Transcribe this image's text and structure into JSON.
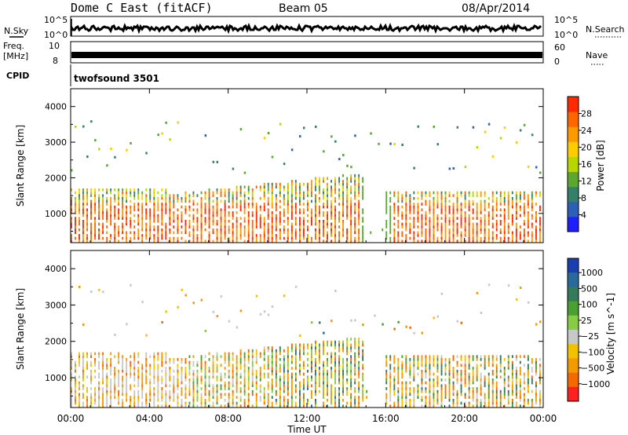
{
  "header": {
    "station": "Dome C East (fitACF)",
    "beam": "Beam 05",
    "date": "08/Apr/2014"
  },
  "meta_panels": {
    "nsky_label": "N.Sky",
    "nsearch_label": "N.Search",
    "freq_label_line1": "Freq.",
    "freq_label_line2": "[MHz]",
    "nave_label": "Nave",
    "cpid_label": "CPID",
    "cpid_value": "twofsound 3501",
    "noise_ticks": [
      "10^5",
      "10^0"
    ],
    "freq_ticks": [
      "10",
      "8"
    ],
    "nave_ticks": [
      "60",
      "0"
    ]
  },
  "chart_data": [
    {
      "type": "heatmap",
      "name": "power",
      "ylabel": "Slant Range [km]",
      "y_ticks": [
        1000,
        2000,
        3000,
        4000
      ],
      "ylim": [
        180,
        4500
      ],
      "xlim": [
        0,
        24
      ],
      "colorbar_label": "Power [dB]",
      "colorbar_ticks": [
        4,
        8,
        12,
        16,
        20,
        24,
        28
      ],
      "colorbar_range": [
        0,
        32
      ],
      "colorbar_colors": [
        "#1e1eff",
        "#2b5fb8",
        "#35806a",
        "#5aa832",
        "#b8d600",
        "#ffcc00",
        "#ff9900",
        "#ff6600",
        "#ff2a00"
      ]
    },
    {
      "type": "heatmap",
      "name": "velocity",
      "ylabel": "Slant Range [km]",
      "xlabel": "Time UT",
      "x_ticks": [
        "00:00",
        "04:00",
        "08:00",
        "12:00",
        "16:00",
        "20:00",
        "00:00"
      ],
      "y_ticks": [
        1000,
        2000,
        3000,
        4000
      ],
      "ylim": [
        180,
        4500
      ],
      "xlim": [
        0,
        24
      ],
      "colorbar_label": "Velocity [m s^-1]",
      "colorbar_ticks": [
        "1000",
        "500",
        "100",
        "25",
        "−25",
        "−100",
        "−500",
        "−1000"
      ],
      "colorbar_colors": [
        "#1a3fb0",
        "#2a6a9a",
        "#357a5a",
        "#4aa030",
        "#88cc44",
        "#c8c8c8",
        "#f2c200",
        "#f39a00",
        "#f46a00",
        "#ff2020"
      ]
    }
  ]
}
